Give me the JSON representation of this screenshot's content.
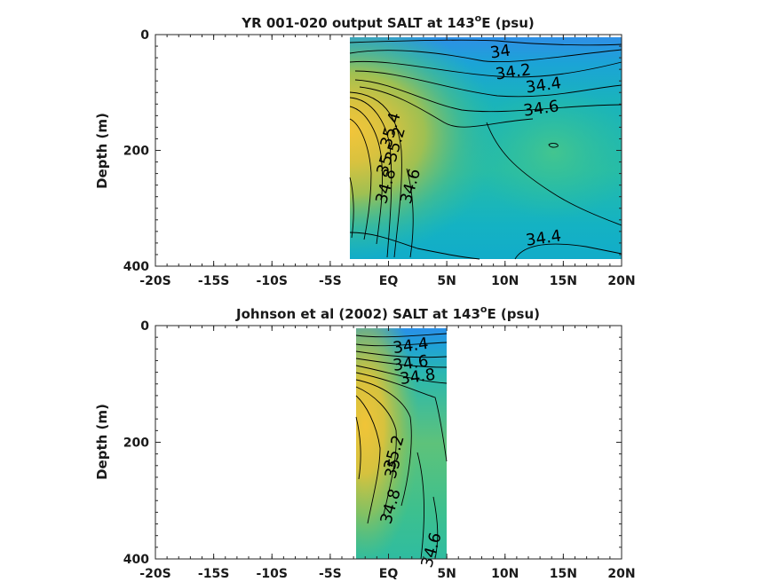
{
  "chart_data": [
    {
      "type": "heatmap",
      "title_prefix": "YR 001-020 output SALT at 143",
      "title_sup": "o",
      "title_suffix": "E (psu)",
      "ylabel": "Depth (m)",
      "x_ticks": [
        "-20S",
        "-15S",
        "-10S",
        "-5S",
        "EQ",
        "5N",
        "10N",
        "15N",
        "20N"
      ],
      "x_tick_values": [
        -20,
        -15,
        -10,
        -5,
        0,
        5,
        10,
        15,
        20
      ],
      "y_ticks": [
        "0",
        "200",
        "400"
      ],
      "y_tick_values": [
        0,
        200,
        400
      ],
      "xlim": [
        -20,
        20
      ],
      "ylim": [
        0,
        400
      ],
      "y_reversed": true,
      "data_extent": {
        "x": [
          -3.3,
          20
        ],
        "depth": [
          5,
          385
        ]
      },
      "contour_labels": [
        {
          "text": "34",
          "x": 9.6,
          "y": 30
        },
        {
          "text": "34.2",
          "x": 10.7,
          "y": 65
        },
        {
          "text": "34.4",
          "x": 13.3,
          "y": 88
        },
        {
          "text": "34.6",
          "x": 13.1,
          "y": 128
        },
        {
          "text": "35.4",
          "x": 0.2,
          "y": 165,
          "rot": -74
        },
        {
          "text": "35.2",
          "x": 0.6,
          "y": 190,
          "rot": -74
        },
        {
          "text": "35",
          "x": -0.3,
          "y": 225,
          "rot": -74
        },
        {
          "text": "34.8",
          "x": -0.2,
          "y": 262,
          "rot": -74
        },
        {
          "text": "34.6",
          "x": 1.9,
          "y": 262,
          "rot": -74
        },
        {
          "text": "34.4",
          "x": 13.3,
          "y": 352
        }
      ]
    },
    {
      "type": "heatmap",
      "title_prefix": "Johnson et al (2002) SALT at 143",
      "title_sup": "o",
      "title_suffix": "E (psu)",
      "ylabel": "Depth (m)",
      "x_ticks": [
        "-20S",
        "-15S",
        "-10S",
        "-5S",
        "EQ",
        "5N",
        "10N",
        "15N",
        "20N"
      ],
      "x_tick_values": [
        -20,
        -15,
        -10,
        -5,
        0,
        5,
        10,
        15,
        20
      ],
      "y_ticks": [
        "0",
        "200",
        "400"
      ],
      "y_tick_values": [
        0,
        200,
        400
      ],
      "xlim": [
        -20,
        20
      ],
      "ylim": [
        0,
        400
      ],
      "y_reversed": true,
      "data_extent": {
        "x": [
          -2.8,
          5
        ],
        "depth": [
          5,
          400
        ]
      },
      "contour_labels": [
        {
          "text": "34.4",
          "x": 1.9,
          "y": 35
        },
        {
          "text": "34.6",
          "x": 1.9,
          "y": 65
        },
        {
          "text": "34.8",
          "x": 2.5,
          "y": 88
        },
        {
          "text": "35.2",
          "x": 0.5,
          "y": 218,
          "rot": -74
        },
        {
          "text": "35",
          "x": 0.4,
          "y": 245,
          "rot": -74
        },
        {
          "text": "34.8",
          "x": 0.2,
          "y": 310,
          "rot": -74
        },
        {
          "text": "34.6",
          "x": 3.7,
          "y": 385,
          "rot": -74
        }
      ]
    }
  ]
}
